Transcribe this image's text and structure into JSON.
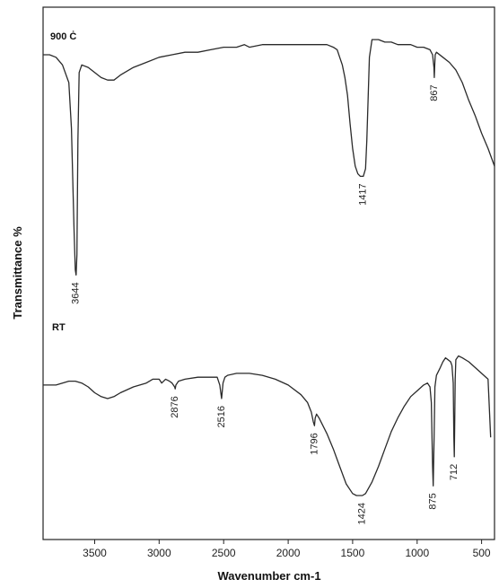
{
  "chart_data": {
    "type": "line",
    "xlabel": "Wavenumber cm-1",
    "ylabel": "Transmittance %",
    "xlim": [
      3900,
      400
    ],
    "x_reversed": true,
    "ylim": [
      0,
      100
    ],
    "y_ticks_shown": false,
    "grid": false,
    "legend": "none",
    "xticks": [
      3500,
      3000,
      2500,
      2000,
      1500,
      1000,
      500
    ],
    "xtick_labels": [
      "3500",
      "3000",
      "2500",
      "2000",
      "1500",
      "1000",
      "500"
    ],
    "series": [
      {
        "name": "900 Ċ",
        "x": [
          3900,
          3850,
          3800,
          3750,
          3700,
          3680,
          3660,
          3650,
          3644,
          3638,
          3630,
          3620,
          3600,
          3550,
          3500,
          3450,
          3400,
          3350,
          3300,
          3200,
          3100,
          3000,
          2900,
          2800,
          2700,
          2600,
          2500,
          2400,
          2340,
          2300,
          2200,
          2100,
          2000,
          1900,
          1800,
          1700,
          1650,
          1620,
          1600,
          1580,
          1560,
          1540,
          1520,
          1500,
          1480,
          1460,
          1440,
          1417,
          1400,
          1390,
          1380,
          1370,
          1350,
          1300,
          1250,
          1200,
          1150,
          1100,
          1050,
          1000,
          950,
          900,
          880,
          870,
          867,
          864,
          860,
          850,
          800,
          750,
          700,
          650,
          600,
          550,
          500,
          450,
          400
        ],
        "y": [
          89,
          89,
          88,
          85,
          78,
          60,
          20,
          4,
          2,
          10,
          55,
          82,
          85,
          84,
          82,
          80,
          79,
          79,
          81,
          84,
          86,
          88,
          89,
          90,
          90,
          91,
          92,
          92,
          93,
          92,
          93,
          93,
          93,
          93,
          93,
          93,
          92,
          91,
          88,
          85,
          80,
          73,
          62,
          52,
          45,
          42,
          41,
          41,
          44,
          55,
          72,
          88,
          95,
          95,
          94,
          94,
          93,
          93,
          93,
          92,
          92,
          91,
          89,
          84,
          80,
          84,
          89,
          90,
          88,
          86,
          83,
          78,
          71,
          65,
          58,
          52,
          45
        ]
      },
      {
        "name": "RT",
        "x": [
          3900,
          3850,
          3800,
          3750,
          3700,
          3650,
          3600,
          3550,
          3500,
          3450,
          3400,
          3350,
          3300,
          3200,
          3100,
          3050,
          3000,
          2980,
          2950,
          2920,
          2900,
          2880,
          2876,
          2870,
          2850,
          2800,
          2700,
          2600,
          2550,
          2530,
          2516,
          2505,
          2490,
          2470,
          2400,
          2300,
          2200,
          2100,
          2000,
          1900,
          1850,
          1820,
          1805,
          1796,
          1790,
          1780,
          1760,
          1700,
          1650,
          1600,
          1550,
          1500,
          1470,
          1440,
          1424,
          1400,
          1350,
          1300,
          1250,
          1200,
          1150,
          1100,
          1050,
          1000,
          950,
          920,
          900,
          890,
          880,
          875,
          870,
          862,
          850,
          820,
          800,
          780,
          760,
          740,
          730,
          720,
          715,
          712,
          709,
          705,
          700,
          680,
          650,
          600,
          550,
          500,
          450,
          430
        ],
        "y": [
          57,
          57,
          57,
          58,
          59,
          59,
          58,
          56,
          53,
          51,
          50,
          51,
          53,
          56,
          58,
          60,
          60,
          58,
          60,
          59,
          58,
          56,
          55,
          57,
          59,
          60,
          61,
          61,
          61,
          57,
          50,
          58,
          61,
          62,
          63,
          63,
          62,
          60,
          57,
          52,
          48,
          43,
          38,
          36,
          40,
          42,
          40,
          32,
          24,
          15,
          6,
          1,
          0,
          0,
          0,
          1,
          7,
          15,
          24,
          33,
          40,
          46,
          51,
          54,
          57,
          58,
          56,
          48,
          15,
          5,
          25,
          56,
          62,
          66,
          69,
          71,
          70,
          69,
          67,
          58,
          30,
          20,
          35,
          60,
          70,
          72,
          71,
          69,
          66,
          63,
          60,
          30
        ]
      }
    ],
    "annotations": [
      {
        "series": 0,
        "x": 3644,
        "text": "3644"
      },
      {
        "series": 0,
        "x": 1417,
        "text": "1417"
      },
      {
        "series": 0,
        "x": 867,
        "text": "867"
      },
      {
        "series": 1,
        "x": 2876,
        "text": "2876"
      },
      {
        "series": 1,
        "x": 2516,
        "text": "2516"
      },
      {
        "series": 1,
        "x": 1796,
        "text": "1796"
      },
      {
        "series": 1,
        "x": 1424,
        "text": "1424"
      },
      {
        "series": 1,
        "x": 875,
        "text": "875"
      },
      {
        "series": 1,
        "x": 712,
        "text": "712"
      }
    ]
  }
}
